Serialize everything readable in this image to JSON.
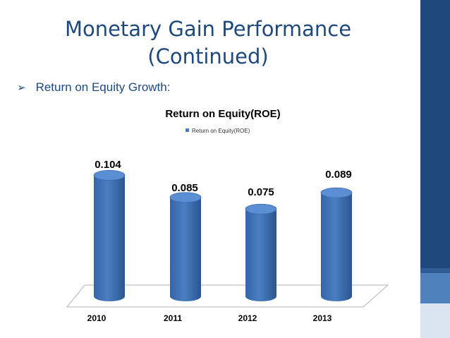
{
  "slide": {
    "title_line1": "Monetary Gain Performance",
    "title_line2": "(Continued)",
    "bullet_symbol": "➢",
    "bullet_text": "Return on Equity Growth:"
  },
  "chart_data": {
    "type": "bar",
    "title": "Return on Equity(ROE)",
    "categories": [
      "2010",
      "2011",
      "2012",
      "2013"
    ],
    "series": [
      {
        "name": "Return on Equity(ROE)",
        "values": [
          0.104,
          0.085,
          0.075,
          0.089
        ]
      }
    ],
    "data_labels": [
      "0.104",
      "0.085",
      "0.075",
      "0.089"
    ],
    "ylim": [
      0,
      0.11
    ],
    "legend_position": "top",
    "grid": false,
    "style": "3d-cylinder",
    "bar_color": "#4a7ec2"
  }
}
